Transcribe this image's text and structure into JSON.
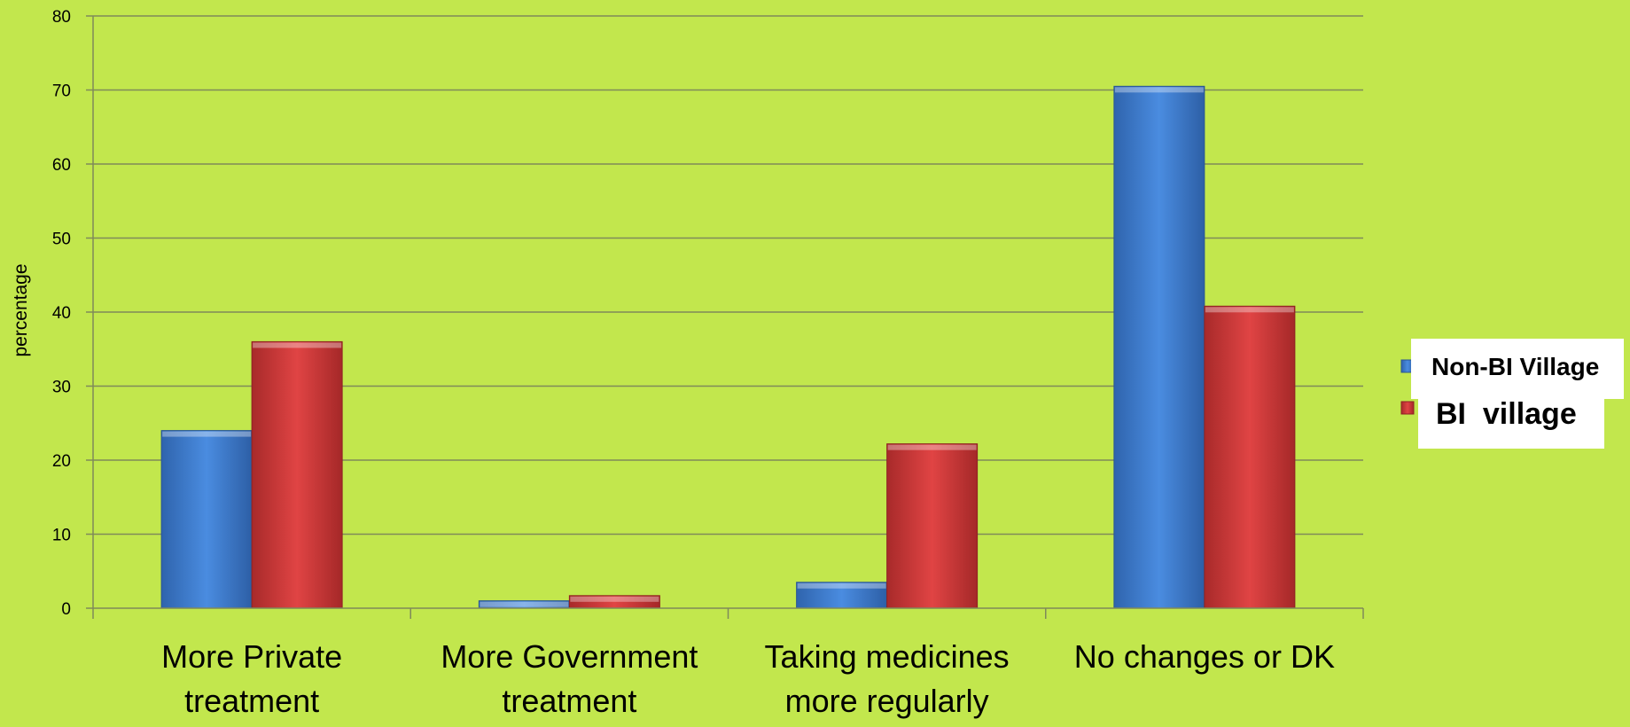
{
  "chart_data": {
    "type": "bar",
    "categories": [
      [
        "More Private",
        "treatment"
      ],
      [
        "More Government",
        "treatment"
      ],
      [
        "Taking medicines",
        "more regularly"
      ],
      [
        "No changes or DK"
      ]
    ],
    "series": [
      {
        "name": "Non-BI Village",
        "values": [
          24,
          1,
          3.5,
          70.5
        ],
        "color": "#3f7fd2"
      },
      {
        "name": "BI  village",
        "values": [
          36,
          1.7,
          22.2,
          40.8
        ],
        "color": "#d63c3c"
      }
    ],
    "ylabel": "percentage",
    "ylim": [
      0,
      80
    ],
    "yticks": [
      0,
      10,
      20,
      30,
      40,
      50,
      60,
      70,
      80
    ],
    "grid": true,
    "legend_position": "right",
    "background": "#c2e74d"
  }
}
